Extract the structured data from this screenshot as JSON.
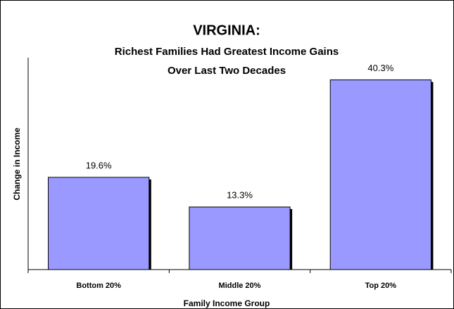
{
  "chart_data": {
    "type": "bar",
    "title": "VIRGINIA:",
    "subtitle": [
      "Richest Families Had Greatest Income Gains",
      "Over Last Two Decades"
    ],
    "xlabel": "Family Income Group",
    "ylabel": "Change in Income",
    "categories": [
      "Bottom 20%",
      "Middle 20%",
      "Top 20%"
    ],
    "values": [
      19.6,
      13.3,
      40.3
    ],
    "value_labels": [
      "19.6%",
      "13.3%",
      "40.3%"
    ],
    "color": "#9999ff",
    "ylim": [
      0,
      45
    ],
    "grid": false
  }
}
